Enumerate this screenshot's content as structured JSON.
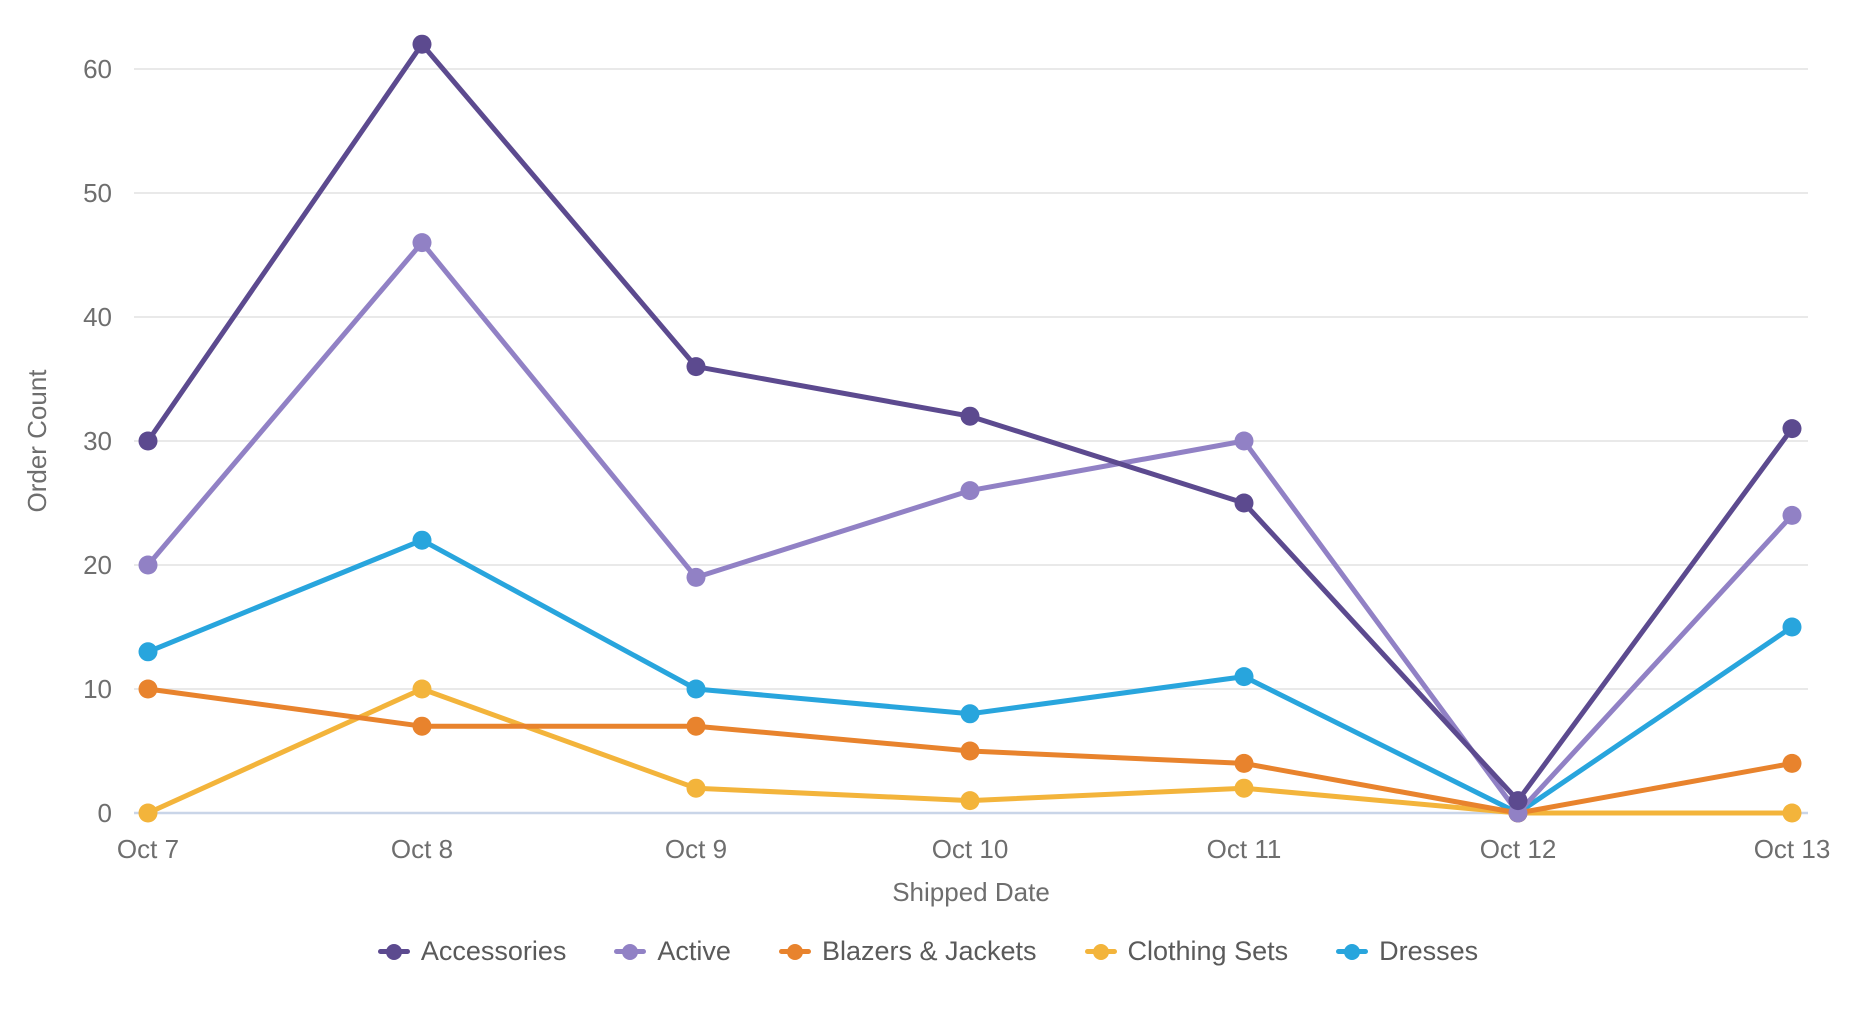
{
  "chart_data": {
    "type": "line",
    "title": "",
    "xlabel": "Shipped Date",
    "ylabel": "Order Count",
    "categories": [
      "Oct 7",
      "Oct 8",
      "Oct 9",
      "Oct 10",
      "Oct 11",
      "Oct 12",
      "Oct 13"
    ],
    "yticks": [
      0,
      10,
      20,
      30,
      40,
      50,
      60
    ],
    "ylim": [
      0,
      65
    ],
    "grid": true,
    "legend_position": "bottom",
    "series": [
      {
        "name": "Accessories",
        "color": "#5c4a8f",
        "values": [
          30,
          62,
          36,
          32,
          25,
          1,
          31
        ]
      },
      {
        "name": "Active",
        "color": "#9181c5",
        "values": [
          20,
          46,
          19,
          26,
          30,
          0,
          24
        ]
      },
      {
        "name": "Blazers & Jackets",
        "color": "#e8832d",
        "values": [
          10,
          7,
          7,
          5,
          4,
          0,
          4
        ]
      },
      {
        "name": "Clothing Sets",
        "color": "#f3b43b",
        "values": [
          0,
          10,
          2,
          1,
          2,
          0,
          0
        ]
      },
      {
        "name": "Dresses",
        "color": "#28a5dd",
        "values": [
          13,
          22,
          10,
          8,
          11,
          0,
          15
        ]
      }
    ]
  },
  "colors": {
    "background": "#ffffff",
    "gridline": "#e9e9e9",
    "zero_line": "#c9d5e8",
    "tick_text": "#6e6e6e",
    "axis_title_text": "#6e6e6e",
    "legend_text": "#5a5a5a"
  }
}
